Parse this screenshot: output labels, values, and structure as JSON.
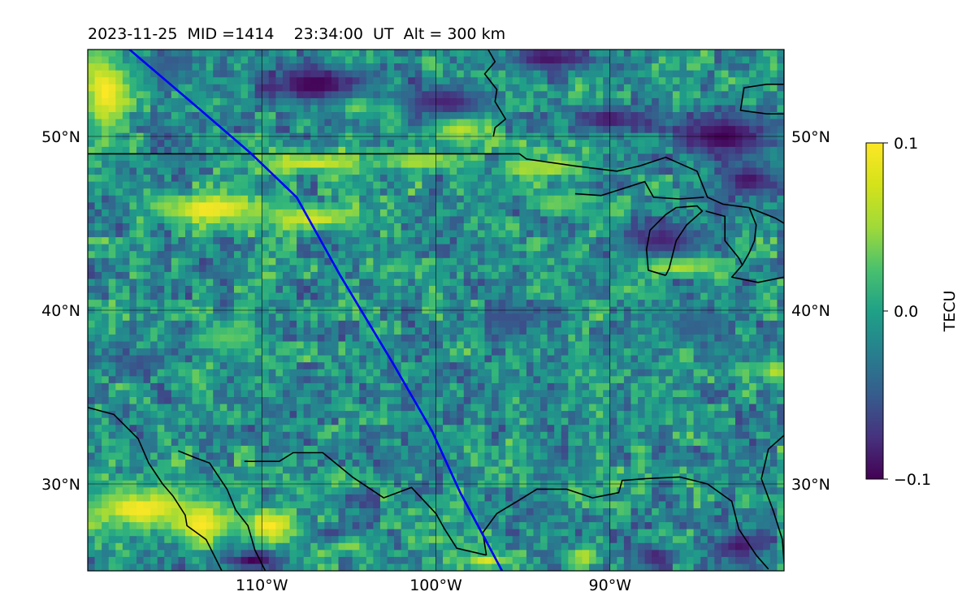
{
  "chart_data": {
    "type": "heatmap",
    "title": "2023-11-25  MID =1414    23:34:00  UT  Alt = 300 km",
    "projection": "map",
    "lon_range": [
      -120,
      -80
    ],
    "lat_range": [
      25,
      55
    ],
    "grid": true,
    "x_ticks": [
      {
        "value": -110,
        "label": "110°W"
      },
      {
        "value": -100,
        "label": "100°W"
      },
      {
        "value": -90,
        "label": "90°W"
      }
    ],
    "y_ticks": [
      {
        "value": 30,
        "label": "30°N"
      },
      {
        "value": 40,
        "label": "40°N"
      },
      {
        "value": 50,
        "label": "50°N"
      }
    ],
    "colorbar": {
      "label": "TECU",
      "colormap": "viridis",
      "range": [
        -0.1,
        0.1
      ],
      "ticks": [
        {
          "value": 0.1,
          "label": "0.1"
        },
        {
          "value": 0.0,
          "label": "0.0"
        },
        {
          "value": -0.1,
          "label": "−0.1"
        }
      ]
    },
    "track": {
      "color": "#0000ff",
      "points": [
        [
          -117.6,
          55
        ],
        [
          -113.5,
          51.5
        ],
        [
          -110.6,
          49
        ],
        [
          -108,
          46.5
        ],
        [
          -105.5,
          42
        ],
        [
          -102.5,
          37
        ],
        [
          -100.2,
          33
        ],
        [
          -98.6,
          29.5
        ],
        [
          -97,
          26.5
        ],
        [
          -96.2,
          25
        ]
      ]
    },
    "anomalies": [
      {
        "lon": -117,
        "lat": 28.6,
        "rlon": 3.5,
        "rlat": 1.2,
        "value": 0.1
      },
      {
        "lon": -113.5,
        "lat": 27.7,
        "rlon": 2.0,
        "rlat": 1.2,
        "value": 0.1
      },
      {
        "lon": -109.5,
        "lat": 27.6,
        "rlon": 1.8,
        "rlat": 1.0,
        "value": 0.1
      },
      {
        "lon": -119,
        "lat": 52.5,
        "rlon": 1.5,
        "rlat": 2.6,
        "value": 0.1
      },
      {
        "lon": -113,
        "lat": 45.8,
        "rlon": 3.0,
        "rlat": 0.9,
        "value": 0.1
      },
      {
        "lon": -107,
        "lat": 45.3,
        "rlon": 3.0,
        "rlat": 0.7,
        "value": 0.09
      },
      {
        "lon": -107,
        "lat": 48.5,
        "rlon": 3.5,
        "rlat": 0.6,
        "value": 0.09
      },
      {
        "lon": -101,
        "lat": 48.6,
        "rlon": 2.5,
        "rlat": 0.5,
        "value": 0.08
      },
      {
        "lon": -98.5,
        "lat": 50.6,
        "rlon": 1.7,
        "rlat": 0.8,
        "value": 0.1
      },
      {
        "lon": -104.5,
        "lat": 51.8,
        "rlon": 1.0,
        "rlat": 0.7,
        "value": 0.1
      },
      {
        "lon": -102.5,
        "lat": 51.6,
        "rlon": 0.8,
        "rlat": 0.7,
        "value": 0.09
      },
      {
        "lon": -94,
        "lat": 48.2,
        "rlon": 2.5,
        "rlat": 0.6,
        "value": 0.08
      },
      {
        "lon": -86,
        "lat": 42.6,
        "rlon": 2.5,
        "rlat": 0.5,
        "value": 0.1
      },
      {
        "lon": -97,
        "lat": 25.6,
        "rlon": 1.5,
        "rlat": 0.5,
        "value": 0.09
      },
      {
        "lon": -91.5,
        "lat": 25.8,
        "rlon": 1.0,
        "rlat": 0.6,
        "value": 0.08
      },
      {
        "lon": -105,
        "lat": 26.5,
        "rlon": 1.2,
        "rlat": 0.5,
        "value": 0.07
      },
      {
        "lon": -100,
        "lat": 26.8,
        "rlon": 1.0,
        "rlat": 0.4,
        "value": 0.06
      },
      {
        "lon": -80.5,
        "lat": 36.5,
        "rlon": 1.0,
        "rlat": 0.8,
        "value": 0.08
      },
      {
        "lon": -93,
        "lat": 46.2,
        "rlon": 2.0,
        "rlat": 0.5,
        "value": 0.06
      },
      {
        "lon": -112,
        "lat": 38.5,
        "rlon": 2.0,
        "rlat": 0.8,
        "value": 0.05
      },
      {
        "lon": -107,
        "lat": 53.0,
        "rlon": 3.0,
        "rlat": 1.2,
        "value": -0.1
      },
      {
        "lon": -99.5,
        "lat": 52.0,
        "rlon": 3.0,
        "rlat": 1.0,
        "value": -0.08
      },
      {
        "lon": -93.5,
        "lat": 54.5,
        "rlon": 2.5,
        "rlat": 0.8,
        "value": -0.09
      },
      {
        "lon": -90,
        "lat": 51.0,
        "rlon": 2.0,
        "rlat": 0.8,
        "value": -0.09
      },
      {
        "lon": -83.5,
        "lat": 50.0,
        "rlon": 3.0,
        "rlat": 1.5,
        "value": -0.1
      },
      {
        "lon": -87,
        "lat": 44.0,
        "rlon": 2.5,
        "rlat": 1.0,
        "value": -0.08
      },
      {
        "lon": -82,
        "lat": 47.5,
        "rlon": 1.8,
        "rlat": 1.0,
        "value": -0.09
      },
      {
        "lon": -82.5,
        "lat": 26.5,
        "rlon": 1.5,
        "rlat": 0.8,
        "value": -0.09
      },
      {
        "lon": -87.5,
        "lat": 25.8,
        "rlon": 1.2,
        "rlat": 0.8,
        "value": -0.08
      },
      {
        "lon": -110.5,
        "lat": 25.6,
        "rlon": 1.5,
        "rlat": 0.6,
        "value": -0.1
      },
      {
        "lon": -106,
        "lat": 27.2,
        "rlon": 1.2,
        "rlat": 0.5,
        "value": -0.06
      },
      {
        "lon": -117,
        "lat": 37.0,
        "rlon": 1.5,
        "rlat": 0.5,
        "value": -0.05
      },
      {
        "lon": -115.5,
        "lat": 54.0,
        "rlon": 1.5,
        "rlat": 0.8,
        "value": -0.04
      },
      {
        "lon": -95.5,
        "lat": 39.5,
        "rlon": 2.0,
        "rlat": 1.0,
        "value": -0.05
      },
      {
        "lon": -85,
        "lat": 39.0,
        "rlon": 2.0,
        "rlat": 1.0,
        "value": -0.04
      }
    ],
    "coastlines": [
      [
        [
          -120,
          34.4
        ],
        [
          -118.5,
          34.0
        ],
        [
          -117.1,
          32.6
        ],
        [
          -116.5,
          31.2
        ],
        [
          -115.7,
          30.0
        ],
        [
          -115.1,
          29.3
        ],
        [
          -114.4,
          28.2
        ],
        [
          -114.3,
          27.6
        ],
        [
          -113.2,
          26.8
        ],
        [
          -112.3,
          25.0
        ]
      ],
      [
        [
          -114.8,
          31.9
        ],
        [
          -113.8,
          31.5
        ],
        [
          -113.0,
          31.2
        ],
        [
          -112.0,
          29.7
        ],
        [
          -111.5,
          28.5
        ],
        [
          -110.8,
          27.6
        ],
        [
          -110.4,
          26.2
        ],
        [
          -109.8,
          25.0
        ]
      ],
      [
        [
          -111.0,
          31.3
        ],
        [
          -109.0,
          31.3
        ],
        [
          -108.2,
          31.8
        ],
        [
          -106.5,
          31.8
        ],
        [
          -104.8,
          30.4
        ],
        [
          -103.0,
          29.2
        ],
        [
          -101.4,
          29.8
        ],
        [
          -100.0,
          28.3
        ],
        [
          -99.5,
          27.4
        ],
        [
          -98.8,
          26.3
        ],
        [
          -97.1,
          25.9
        ]
      ],
      [
        [
          -97.1,
          25.9
        ],
        [
          -97.3,
          27.2
        ],
        [
          -96.5,
          28.3
        ],
        [
          -95.0,
          29.2
        ],
        [
          -94.2,
          29.7
        ],
        [
          -92.5,
          29.7
        ],
        [
          -91.0,
          29.2
        ],
        [
          -89.5,
          29.5
        ],
        [
          -89.3,
          30.2
        ],
        [
          -88.0,
          30.3
        ],
        [
          -86.0,
          30.4
        ],
        [
          -84.4,
          30.0
        ],
        [
          -83.0,
          29.0
        ],
        [
          -82.6,
          27.4
        ],
        [
          -81.6,
          25.9
        ],
        [
          -80.9,
          25.1
        ]
      ],
      [
        [
          -80.0,
          25.5
        ],
        [
          -80.1,
          26.8
        ],
        [
          -80.6,
          28.4
        ],
        [
          -81.3,
          30.3
        ],
        [
          -80.9,
          32.0
        ],
        [
          -80.0,
          32.8
        ]
      ],
      [
        [
          -120,
          49.0
        ],
        [
          -95.2,
          49.0
        ],
        [
          -94.8,
          48.7
        ],
        [
          -92.0,
          48.3
        ],
        [
          -89.6,
          48.0
        ],
        [
          -88.3,
          48.3
        ],
        [
          -86.8,
          48.8
        ],
        [
          -85.0,
          48.0
        ],
        [
          -84.6,
          47.0
        ],
        [
          -84.4,
          46.5
        ],
        [
          -83.5,
          46.1
        ],
        [
          -82.0,
          45.9
        ],
        [
          -80.5,
          45.3
        ],
        [
          -80.0,
          45.0
        ]
      ],
      [
        [
          -92.0,
          46.7
        ],
        [
          -90.5,
          46.6
        ],
        [
          -88.0,
          47.4
        ],
        [
          -87.5,
          46.5
        ],
        [
          -86.0,
          46.4
        ],
        [
          -84.6,
          46.5
        ]
      ],
      [
        [
          -86.8,
          42.0
        ],
        [
          -87.8,
          42.3
        ],
        [
          -87.9,
          43.5
        ],
        [
          -87.7,
          44.6
        ],
        [
          -86.8,
          45.5
        ],
        [
          -86.2,
          45.9
        ],
        [
          -85.0,
          46.0
        ],
        [
          -84.7,
          45.7
        ],
        [
          -85.6,
          44.9
        ],
        [
          -86.2,
          44.0
        ],
        [
          -86.4,
          43.2
        ],
        [
          -86.6,
          42.4
        ],
        [
          -86.8,
          42.0
        ]
      ],
      [
        [
          -84.5,
          45.7
        ],
        [
          -83.4,
          45.4
        ],
        [
          -83.4,
          44.0
        ],
        [
          -82.6,
          43.0
        ],
        [
          -82.4,
          42.6
        ],
        [
          -83.0,
          41.9
        ],
        [
          -81.5,
          41.6
        ],
        [
          -80.0,
          41.9
        ]
      ],
      [
        [
          -82.0,
          45.9
        ],
        [
          -81.6,
          44.9
        ],
        [
          -81.7,
          44.0
        ],
        [
          -82.0,
          43.3
        ],
        [
          -82.4,
          42.6
        ]
      ],
      [
        [
          -97.0,
          55.0
        ],
        [
          -96.6,
          54.3
        ],
        [
          -97.2,
          53.6
        ],
        [
          -96.5,
          52.7
        ],
        [
          -96.6,
          52.0
        ],
        [
          -96.0,
          51.0
        ],
        [
          -96.6,
          50.5
        ],
        [
          -96.7,
          50.0
        ]
      ],
      [
        [
          -80.0,
          55.0
        ],
        [
          -80.0,
          53.0
        ],
        [
          -81.0,
          53.0
        ],
        [
          -82.3,
          52.8
        ],
        [
          -82.5,
          51.5
        ],
        [
          -81.0,
          51.3
        ],
        [
          -80.0,
          51.3
        ]
      ]
    ]
  }
}
